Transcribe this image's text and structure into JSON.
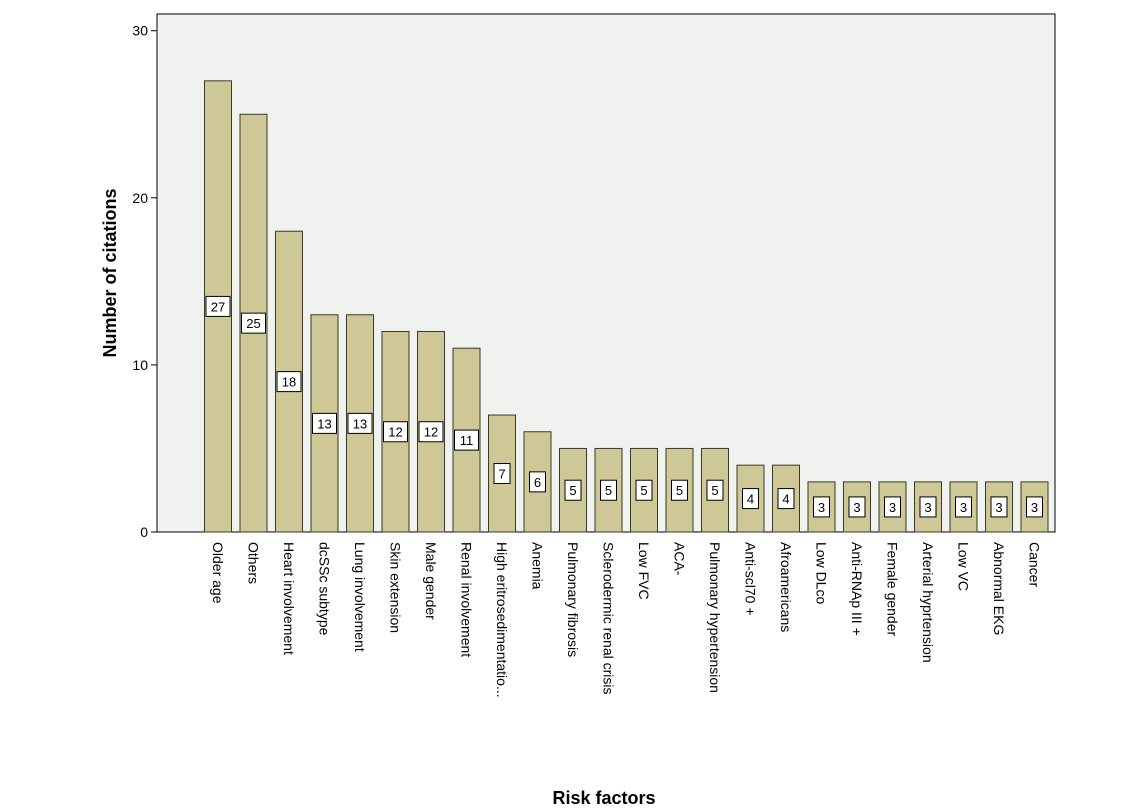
{
  "chart_data": {
    "type": "bar",
    "title": "",
    "xlabel": "Risk factors",
    "ylabel": "Number of citations",
    "ylim": [
      0,
      31
    ],
    "yticks": [
      0,
      10,
      20,
      30
    ],
    "grid": false,
    "legend": "none",
    "data_labels": [
      "27",
      "25",
      "18",
      "13",
      "13",
      "12",
      "12",
      "11",
      "7",
      "6",
      "5",
      "5",
      "5",
      "5",
      "5",
      "4",
      "4",
      "3",
      "3",
      "3",
      "3",
      "3",
      "3",
      "3"
    ],
    "categories": [
      "Older age",
      "Others",
      "Heart involvement",
      "dcSSc subtype",
      "Lung involvement",
      "Skin extension",
      "Male gender",
      "Renal involvement",
      "High eritrosedimentatio...",
      "Anemia",
      "Pulmonary fibrosis",
      "Sclerodermic renal crisis",
      "Low FVC",
      "ACA-",
      "Pulmonary hypertension",
      "Anti-scl70 +",
      "Afroamericans",
      "Low DLco",
      "Anti-RNAp III +",
      "Female gender",
      "Arterial hyprtension",
      "Low VC",
      "Abnormal EKG",
      "Cancer"
    ],
    "values": [
      27,
      25,
      18,
      13,
      13,
      12,
      12,
      11,
      7,
      6,
      5,
      5,
      5,
      5,
      5,
      4,
      4,
      3,
      3,
      3,
      3,
      3,
      3,
      3
    ],
    "colors": {
      "bar_fill": "#cdc896",
      "bar_stroke": "#3a3a28",
      "plot_bg": "#eff2ef",
      "axis": "#000000"
    }
  }
}
